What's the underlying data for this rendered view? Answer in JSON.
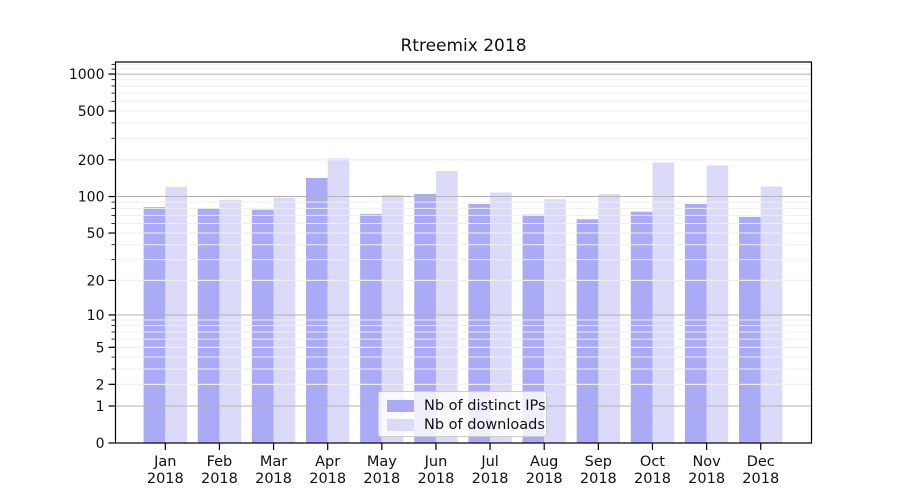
{
  "figure": {
    "background": "#ffffff"
  },
  "chart_data": {
    "type": "bar",
    "title": "Rtreemix 2018",
    "categories": [
      "Jan 2018",
      "Feb 2018",
      "Mar 2018",
      "Apr 2018",
      "May 2018",
      "Jun 2018",
      "Jul 2018",
      "Aug 2018",
      "Sep 2018",
      "Oct 2018",
      "Nov 2018",
      "Dec 2018"
    ],
    "series": [
      {
        "name": "Nb of distinct IPs",
        "color": "#aaaaf7",
        "values": [
          82,
          80,
          78,
          142,
          72,
          105,
          87,
          71,
          65,
          75,
          87,
          68
        ]
      },
      {
        "name": "Nb of downloads",
        "color": "#dbdbf9",
        "values": [
          120,
          94,
          98,
          206,
          103,
          162,
          108,
          95,
          105,
          190,
          180,
          121
        ]
      }
    ],
    "xlabel": "",
    "ylabel": "",
    "yscale": "symlog",
    "yticks": [
      0,
      1,
      2,
      5,
      10,
      20,
      50,
      100,
      200,
      500,
      1000
    ],
    "ylim": [
      0,
      1250
    ],
    "grid": true,
    "legend_position": "lower center",
    "axis_color": "#000000",
    "grid_major_color": "#b3b3b3",
    "grid_minor_color": "#efefef"
  }
}
